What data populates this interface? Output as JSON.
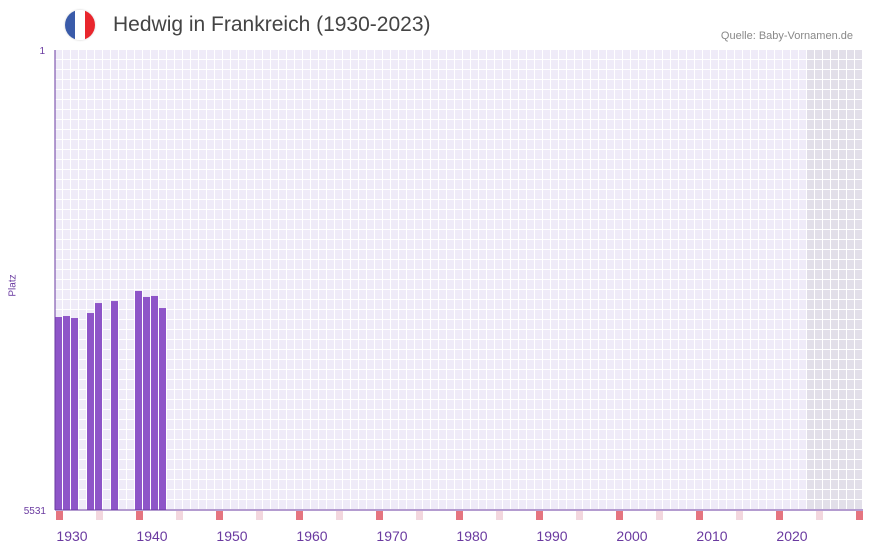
{
  "header": {
    "title": "Hedwig in Frankreich (1930-2023)",
    "source": "Quelle: Baby-Vornamen.de",
    "flag_colors": [
      "#3a5ba9",
      "#ffffff",
      "#e8262d"
    ]
  },
  "chart_data": {
    "type": "bar",
    "title": "Hedwig in Frankreich (1930-2023)",
    "ylabel": "Platz",
    "xlabel": "",
    "ylim": [
      5531,
      1
    ],
    "y_ticks": [
      "1",
      "5531"
    ],
    "x_range": [
      1930,
      2030
    ],
    "x_ticks": [
      "1930",
      "1940",
      "1950",
      "1960",
      "1970",
      "1980",
      "1990",
      "2000",
      "2010",
      "2020"
    ],
    "data_end_year": 2023,
    "x": [
      1930,
      1931,
      1932,
      1934,
      1935,
      1937,
      1940,
      1941,
      1942,
      1943
    ],
    "values": [
      3211,
      3199,
      3223,
      3163,
      3043,
      3019,
      2898,
      2970,
      2958,
      3103
    ],
    "colors": {
      "bar": "#8e55c8",
      "axis": "#6a3aa0",
      "grid_bg": "#efebf8",
      "future_bg": "#e2dfe9",
      "decade_marker": "#e57580",
      "half_decade_marker": "#f3d7de"
    }
  }
}
